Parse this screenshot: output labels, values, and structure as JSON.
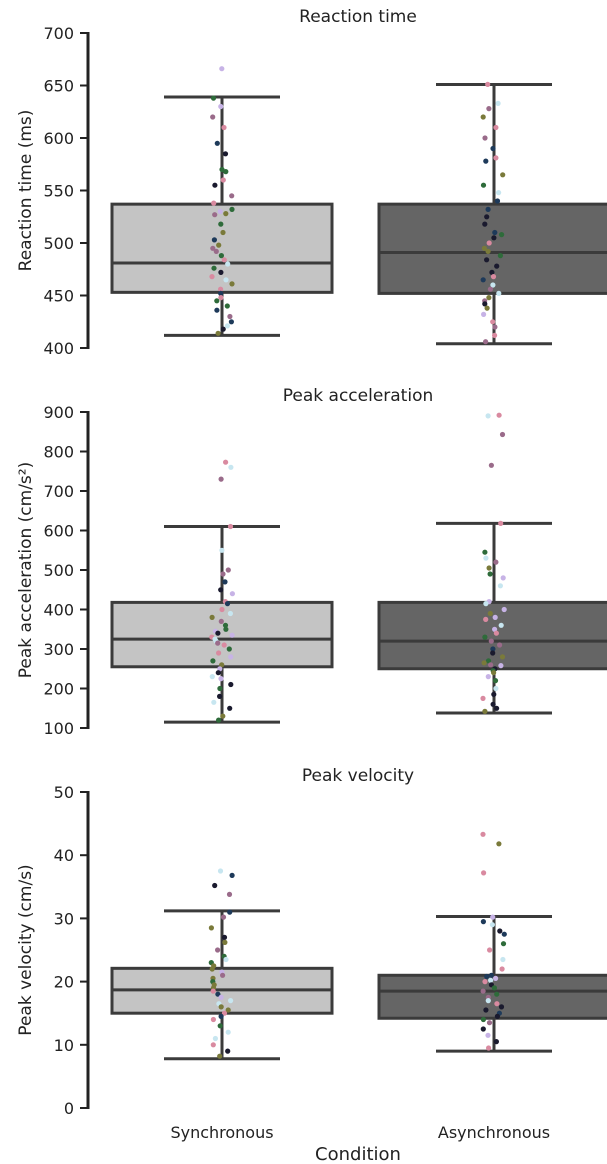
{
  "chart_data": {
    "type": "box",
    "xlabel": "Condition",
    "categories": [
      "Synchronous",
      "Asynchronous"
    ],
    "box_colors": [
      "#c4c4c4",
      "#656565"
    ],
    "edge_color": "#3b3b3b",
    "point_colors": [
      "#1a1a2e",
      "#2e6b3a",
      "#7a7a3a",
      "#d98aa0",
      "#c7b3e6",
      "#c7e6f0",
      "#1e3a5a",
      "#9a6b8a"
    ],
    "panels": [
      {
        "title": "Reaction time",
        "ylabel": "Reaction time (ms)",
        "ylim": [
          400,
          700
        ],
        "yticks": [
          400,
          450,
          500,
          550,
          600,
          650,
          700
        ],
        "boxes": [
          {
            "category": "Synchronous",
            "whisker_low": 412,
            "q1": 453,
            "median": 481,
            "q3": 537,
            "whisker_high": 639,
            "points": [
              666,
              638,
              630,
              620,
              610,
              595,
              585,
              570,
              568,
              560,
              555,
              545,
              538,
              532,
              530,
              528,
              527,
              518,
              510,
              503,
              498,
              495,
              492,
              488,
              484,
              480,
              476,
              472,
              468,
              465,
              461,
              456,
              452,
              448,
              445,
              440,
              436,
              430,
              425,
              421,
              418,
              414
            ]
          },
          {
            "category": "Asynchronous",
            "whisker_low": 404,
            "q1": 452,
            "median": 491,
            "q3": 537,
            "whisker_high": 651,
            "points": [
              651,
              633,
              628,
              620,
              610,
              600,
              590,
              581,
              578,
              565,
              555,
              548,
              540,
              532,
              525,
              518,
              510,
              508,
              505,
              500,
              495,
              492,
              488,
              484,
              478,
              472,
              468,
              465,
              460,
              456,
              452,
              448,
              445,
              442,
              438,
              432,
              425,
              420,
              412,
              406
            ]
          }
        ]
      },
      {
        "title": "Peak acceleration",
        "ylabel": "Peak acceleration (cm/s²)",
        "ylim": [
          100,
          900
        ],
        "yticks": [
          100,
          200,
          300,
          400,
          500,
          600,
          700,
          800,
          900
        ],
        "boxes": [
          {
            "category": "Synchronous",
            "whisker_low": 115,
            "q1": 255,
            "median": 325,
            "q3": 418,
            "whisker_high": 610,
            "points": [
              773,
              760,
              730,
              610,
              550,
              500,
              490,
              470,
              450,
              440,
              420,
              415,
              400,
              390,
              380,
              370,
              360,
              350,
              345,
              340,
              335,
              330,
              325,
              320,
              315,
              310,
              300,
              290,
              280,
              270,
              260,
              250,
              240,
              230,
              225,
              210,
              200,
              180,
              165,
              150,
              130,
              120
            ]
          },
          {
            "category": "Asynchronous",
            "whisker_low": 138,
            "q1": 250,
            "median": 320,
            "q3": 418,
            "whisker_high": 618,
            "points": [
              892,
              890,
              843,
              765,
              618,
              545,
              530,
              520,
              505,
              490,
              480,
              460,
              420,
              415,
              400,
              390,
              380,
              375,
              360,
              350,
              340,
              330,
              320,
              310,
              300,
              290,
              280,
              270,
              265,
              260,
              258,
              250,
              245,
              240,
              230,
              220,
              200,
              185,
              175,
              160,
              150,
              142
            ]
          }
        ]
      },
      {
        "title": "Peak velocity",
        "ylabel": "Peak velocity (cm/s)",
        "ylim": [
          0,
          50
        ],
        "yticks": [
          0,
          10,
          20,
          30,
          40,
          50
        ],
        "boxes": [
          {
            "category": "Synchronous",
            "whisker_low": 7.8,
            "q1": 15.0,
            "median": 18.7,
            "q3": 22.1,
            "whisker_high": 31.2,
            "points": [
              37.5,
              36.8,
              35.2,
              33.8,
              31.0,
              30.2,
              28.5,
              27.0,
              26.2,
              25.0,
              24.0,
              23.5,
              23.0,
              22.5,
              22.0,
              21.5,
              21.0,
              20.5,
              20.0,
              19.5,
              19.0,
              18.5,
              18.0,
              17.5,
              17.0,
              16.5,
              16.0,
              15.5,
              15.0,
              14.5,
              14.0,
              13.0,
              12.0,
              11.0,
              10.0,
              9.0,
              8.2
            ]
          },
          {
            "category": "Asynchronous",
            "whisker_low": 9.0,
            "q1": 14.2,
            "median": 18.5,
            "q3": 21.0,
            "whisker_high": 30.3,
            "points": [
              43.3,
              41.8,
              37.2,
              30.2,
              29.5,
              29.0,
              28.0,
              27.5,
              26.0,
              25.0,
              23.5,
              22.0,
              21.0,
              20.8,
              20.5,
              20.2,
              20.0,
              19.5,
              19.0,
              18.5,
              18.0,
              17.5,
              17.0,
              16.5,
              16.0,
              15.5,
              15.0,
              14.5,
              14.0,
              13.5,
              12.5,
              11.5,
              10.5,
              9.5
            ]
          }
        ]
      }
    ]
  }
}
